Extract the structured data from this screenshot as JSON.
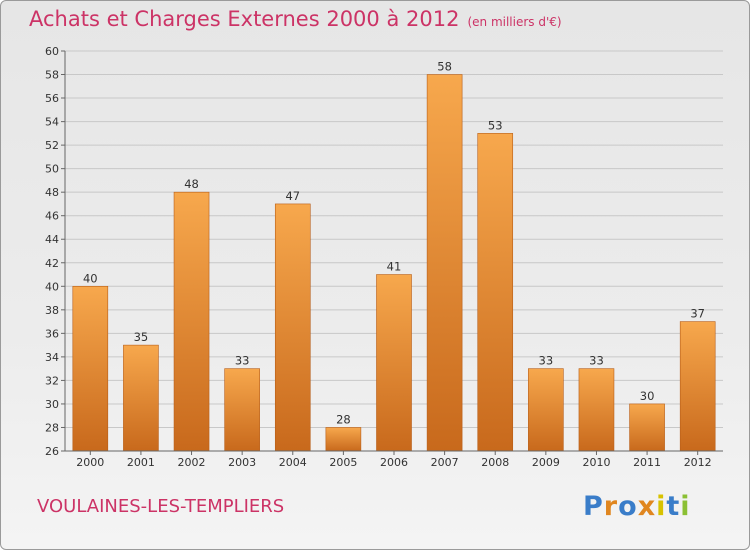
{
  "title": "Achats et Charges Externes 2000 à 2012",
  "unit_note": "(en milliers d'€)",
  "commune": "VOULAINES-LES-TEMPLIERS",
  "logo": {
    "text": "Proxiti",
    "letter_colors": [
      "#3a7dc9",
      "#e0861f",
      "#3a7dc9",
      "#e0861f",
      "#d8c200",
      "#3a7dc9",
      "#8bc034"
    ]
  },
  "colors": {
    "title": "#cc3366",
    "bar_light": "#f7a84d",
    "bar_dark": "#c8691c"
  },
  "chart_data": {
    "type": "bar",
    "categories": [
      "2000",
      "2001",
      "2002",
      "2003",
      "2004",
      "2005",
      "2006",
      "2007",
      "2008",
      "2009",
      "2010",
      "2011",
      "2012"
    ],
    "values": [
      40,
      35,
      48,
      33,
      47,
      28,
      41,
      58,
      53,
      33,
      33,
      30,
      37
    ],
    "ylim": [
      26,
      60
    ],
    "yticks": [
      26,
      28,
      30,
      32,
      34,
      36,
      38,
      40,
      42,
      44,
      46,
      48,
      50,
      52,
      54,
      56,
      58,
      60
    ],
    "grid": true,
    "xlabel": "",
    "ylabel": ""
  }
}
